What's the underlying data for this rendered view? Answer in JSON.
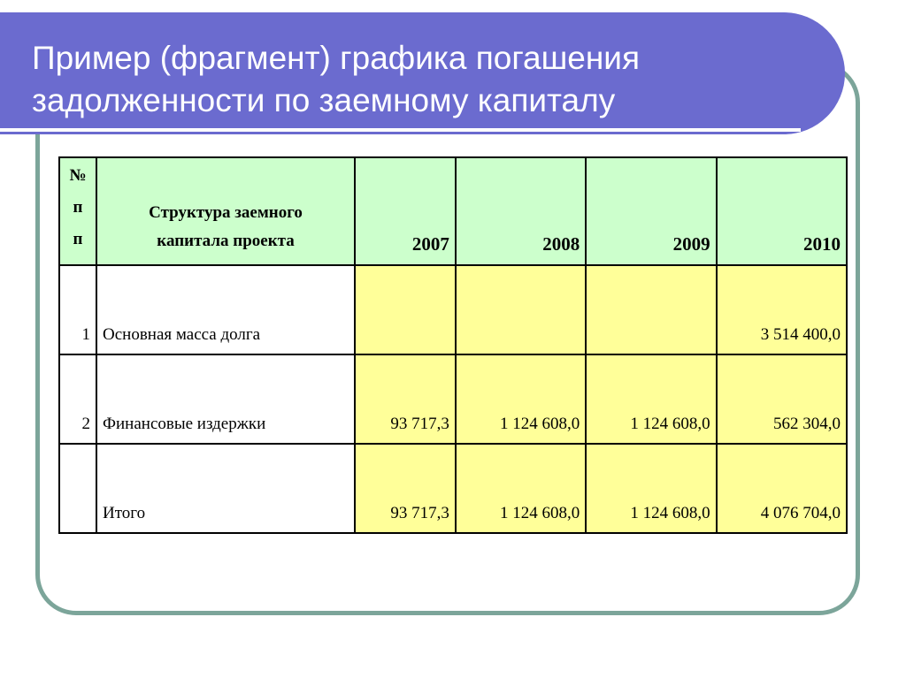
{
  "slide": {
    "title_line1": "Пример (фрагмент) графика погашения",
    "title_line2": "задолженности по заемному капиталу"
  },
  "table": {
    "headers": {
      "num_line1": "№",
      "num_line2": "п",
      "num_line3": "п",
      "structure_line1": "Структура заемного",
      "structure_line2": "капитала проекта",
      "years": [
        "2007",
        "2008",
        "2009",
        "2010"
      ]
    },
    "rows": [
      {
        "num": "1",
        "label": "Основная масса долга",
        "values": [
          "",
          "",
          "",
          "3 514 400,0"
        ]
      },
      {
        "num": "2",
        "label": "Финансовые издержки",
        "values": [
          "93 717,3",
          "1 124 608,0",
          "1 124 608,0",
          "562 304,0"
        ]
      },
      {
        "num": "",
        "label": "Итого",
        "values": [
          "93 717,3",
          "1 124 608,0",
          "1 124 608,0",
          "4 076 704,0"
        ]
      }
    ]
  },
  "colors": {
    "title_bar": "#6b6bcf",
    "frame_border": "#7ca59a",
    "header_fill": "#ccffcc",
    "value_fill": "#ffff99"
  }
}
